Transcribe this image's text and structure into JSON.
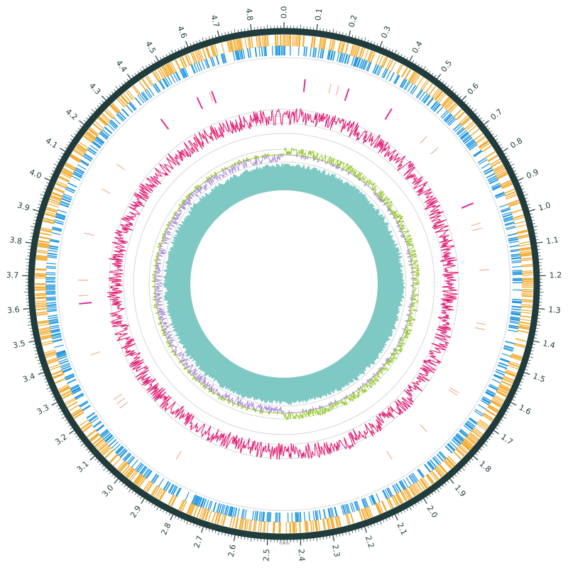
{
  "figure": {
    "caption": "TN2088"
  },
  "chart_data": {
    "type": "circular-genome-map",
    "axis": {
      "unit": "Mb",
      "max": 4.9,
      "tick_labels": [
        "0.0",
        "0.1",
        "0.2",
        "0.3",
        "0.4",
        "0.5",
        "0.6",
        "0.7",
        "0.8",
        "0.9",
        "1.0",
        "1.1",
        "1.2",
        "1.3",
        "1.4",
        "1.5",
        "1.6",
        "1.7",
        "1.8",
        "1.9",
        "2.0",
        "2.1",
        "2.2",
        "2.3",
        "2.4",
        "2.5",
        "2.6",
        "2.7",
        "2.8",
        "2.9",
        "3.0",
        "3.1",
        "3.2",
        "3.3",
        "3.4",
        "3.5",
        "3.6",
        "3.7",
        "3.8",
        "3.9",
        "4.0",
        "4.1",
        "4.2",
        "4.3",
        "4.4",
        "4.5",
        "4.6",
        "4.7",
        "4.8"
      ]
    },
    "tracks": [
      {
        "id": "cds-forward",
        "color": "#f4a92a"
      },
      {
        "id": "cds-reverse",
        "color": "#1e96e0"
      },
      {
        "id": "rrna",
        "color": "#d6309e",
        "positions_mb": [
          0.08,
          0.25,
          0.43,
          0.91,
          3.6,
          4.4,
          4.56,
          4.62
        ]
      },
      {
        "id": "trna",
        "color": "#f3a07a",
        "positions_mb": [
          0.18,
          0.21,
          0.6,
          0.66,
          0.99,
          1.01,
          1.17,
          1.38,
          1.4,
          1.66,
          1.67,
          1.85,
          2.02,
          2.88,
          3.17,
          3.19,
          3.21,
          3.4,
          3.63,
          3.69,
          3.87,
          4.05,
          4.16,
          4.61
        ]
      },
      {
        "id": "gc-content",
        "color": "#e0136e"
      },
      {
        "id": "gc-skew-positive",
        "color": "#8fc81e"
      },
      {
        "id": "gc-skew-negative",
        "color": "#a98bd6"
      },
      {
        "id": "coverage",
        "color": "#7fc9c4"
      }
    ],
    "colors": {
      "backbone": "#203c3c",
      "guide": "#cccccc"
    }
  }
}
